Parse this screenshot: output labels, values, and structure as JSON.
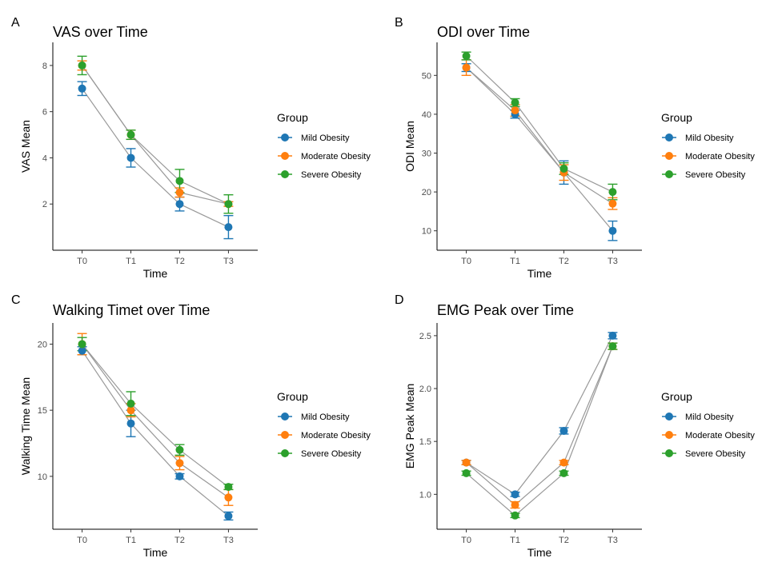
{
  "legend_title": "Group",
  "colors": {
    "Mild Obesity": "#1f77b4",
    "Moderate Obesity": "#ff7f0e",
    "Severe Obesity": "#2ca02c",
    "connector": "#999999"
  },
  "chart_data": [
    {
      "type": "line",
      "panel_label": "A",
      "title": "VAS over Time",
      "xlabel": "Time",
      "ylabel": "VAS Mean",
      "categories": [
        "T0",
        "T1",
        "T2",
        "T3"
      ],
      "ylim": [
        0.0,
        9.0
      ],
      "yticks": [
        2,
        4,
        6,
        8
      ],
      "tick_labels": [
        "2",
        "4",
        "6",
        "8"
      ],
      "legend_position": "right",
      "series": [
        {
          "name": "Mild Obesity",
          "values": [
            7.0,
            4.0,
            2.0,
            1.0
          ],
          "err": [
            0.3,
            0.4,
            0.3,
            0.5
          ]
        },
        {
          "name": "Moderate Obesity",
          "values": [
            8.0,
            5.0,
            2.5,
            2.0
          ],
          "err": [
            0.2,
            0.2,
            0.2,
            0.1
          ]
        },
        {
          "name": "Severe Obesity",
          "values": [
            8.0,
            5.0,
            3.0,
            2.0
          ],
          "err": [
            0.4,
            0.2,
            0.5,
            0.4
          ]
        }
      ]
    },
    {
      "type": "line",
      "panel_label": "B",
      "title": "ODI over Time",
      "xlabel": "Time",
      "ylabel": "ODI Mean",
      "categories": [
        "T0",
        "T1",
        "T2",
        "T3"
      ],
      "ylim": [
        5.0,
        58.5
      ],
      "yticks": [
        10,
        20,
        30,
        40,
        50
      ],
      "tick_labels": [
        "10",
        "20",
        "30",
        "40",
        "50"
      ],
      "legend_position": "right",
      "series": [
        {
          "name": "Mild Obesity",
          "values": [
            52.0,
            40.0,
            25.0,
            10.0
          ],
          "err": [
            1.0,
            1.0,
            3.0,
            2.5
          ]
        },
        {
          "name": "Moderate Obesity",
          "values": [
            52.0,
            41.0,
            25.0,
            17.0
          ],
          "err": [
            2.0,
            1.5,
            2.0,
            1.5
          ]
        },
        {
          "name": "Severe Obesity",
          "values": [
            55.0,
            43.0,
            26.0,
            20.0
          ],
          "err": [
            1.0,
            1.0,
            1.5,
            2.0
          ]
        }
      ]
    },
    {
      "type": "line",
      "panel_label": "C",
      "title": "Walking Timet over Time",
      "xlabel": "Time",
      "ylabel": "Walking Time Mean",
      "categories": [
        "T0",
        "T1",
        "T2",
        "T3"
      ],
      "ylim": [
        6.0,
        21.6
      ],
      "yticks": [
        10,
        15,
        20
      ],
      "tick_labels": [
        "10",
        "15",
        "20"
      ],
      "legend_position": "right",
      "series": [
        {
          "name": "Mild Obesity",
          "values": [
            19.5,
            14.0,
            10.0,
            7.0
          ],
          "err": [
            0.3,
            1.0,
            0.2,
            0.3
          ]
        },
        {
          "name": "Moderate Obesity",
          "values": [
            20.0,
            15.0,
            11.0,
            8.4
          ],
          "err": [
            0.8,
            0.5,
            0.5,
            0.6
          ]
        },
        {
          "name": "Severe Obesity",
          "values": [
            20.0,
            15.5,
            12.0,
            9.2
          ],
          "err": [
            0.5,
            0.9,
            0.4,
            0.2
          ]
        }
      ]
    },
    {
      "type": "line",
      "panel_label": "D",
      "title": "EMG Peak over Time",
      "xlabel": "Time",
      "ylabel": "EMG Peak Mean",
      "categories": [
        "T0",
        "T1",
        "T2",
        "T3"
      ],
      "ylim": [
        0.67,
        2.62
      ],
      "yticks": [
        1.0,
        1.5,
        2.0,
        2.5
      ],
      "tick_labels": [
        "1.0",
        "1.5",
        "2.0",
        "2.5"
      ],
      "legend_position": "right",
      "series": [
        {
          "name": "Mild Obesity",
          "values": [
            1.3,
            1.0,
            1.6,
            2.5
          ],
          "err": [
            0.02,
            0.02,
            0.03,
            0.03
          ]
        },
        {
          "name": "Moderate Obesity",
          "values": [
            1.3,
            0.9,
            1.3,
            2.4
          ],
          "err": [
            0.02,
            0.03,
            0.02,
            0.03
          ]
        },
        {
          "name": "Severe Obesity",
          "values": [
            1.2,
            0.8,
            1.2,
            2.4
          ],
          "err": [
            0.02,
            0.02,
            0.02,
            0.03
          ]
        }
      ]
    }
  ]
}
